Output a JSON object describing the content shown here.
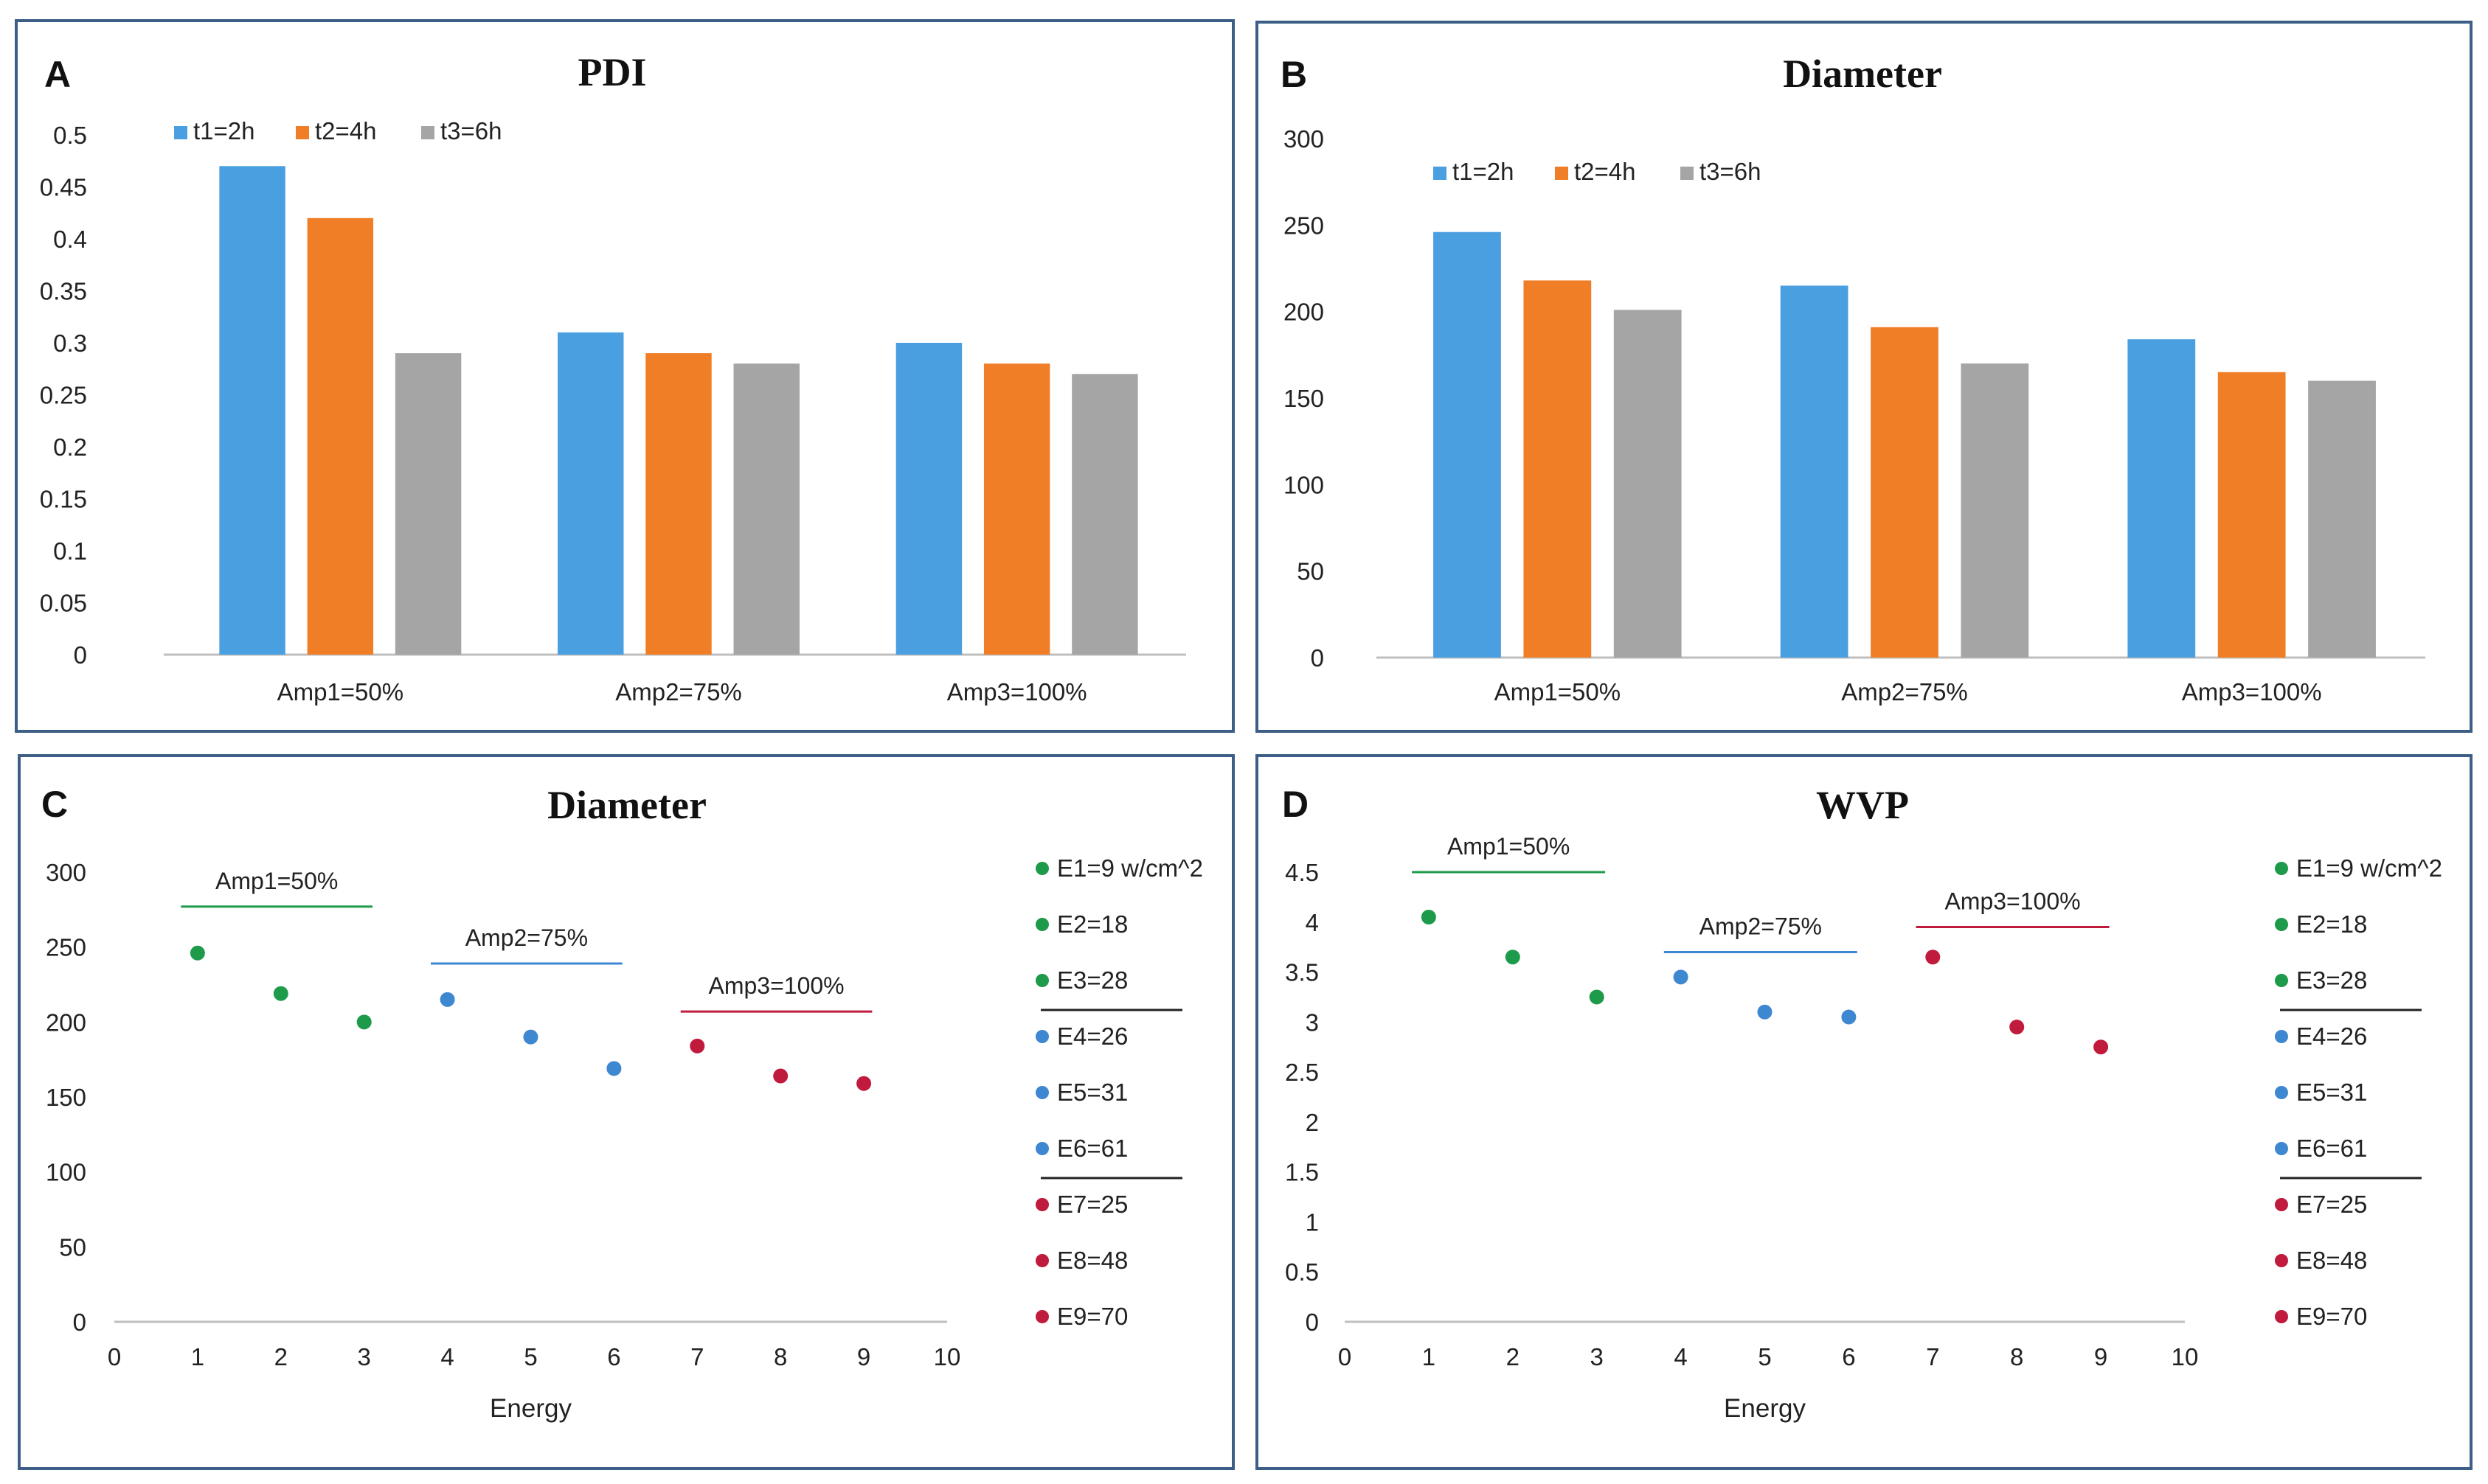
{
  "colors": {
    "t1": "#4a9fe0",
    "t2": "#f07e26",
    "t3": "#a5a5a5",
    "amp1": "#1e9a4b",
    "amp2": "#3e87d1",
    "amp3": "#c01a3c",
    "frame": "#3d5e86",
    "axis": "#bfbfbf"
  },
  "chart_data": [
    {
      "id": "A",
      "letter": "A",
      "type": "bar",
      "title": "PDI",
      "categories": [
        "Amp1=50%",
        "Amp2=75%",
        "Amp3=100%"
      ],
      "series": [
        {
          "name": "t1=2h",
          "color_key": "t1",
          "values": [
            0.47,
            0.31,
            0.3
          ]
        },
        {
          "name": "t2=4h",
          "color_key": "t2",
          "values": [
            0.42,
            0.29,
            0.28
          ]
        },
        {
          "name": "t3=6h",
          "color_key": "t3",
          "values": [
            0.29,
            0.28,
            0.27
          ]
        }
      ],
      "ylim": [
        0,
        0.5
      ],
      "yticks": [
        "0",
        "0.05",
        "0.1",
        "0.15",
        "0.2",
        "0.25",
        "0.3",
        "0.35",
        "0.4",
        "0.45",
        "0.5"
      ],
      "legend_position": "top-left",
      "xlabel": "",
      "ylabel": ""
    },
    {
      "id": "B",
      "letter": "B",
      "type": "bar",
      "title": "Diameter",
      "categories": [
        "Amp1=50%",
        "Amp2=75%",
        "Amp3=100%"
      ],
      "series": [
        {
          "name": "t1=2h",
          "color_key": "t1",
          "values": [
            246,
            215,
            184
          ]
        },
        {
          "name": "t2=4h",
          "color_key": "t2",
          "values": [
            218,
            191,
            165
          ]
        },
        {
          "name": "t3=6h",
          "color_key": "t3",
          "values": [
            201,
            170,
            160
          ]
        }
      ],
      "ylim": [
        0,
        300
      ],
      "yticks": [
        "0",
        "50",
        "100",
        "150",
        "200",
        "250",
        "300"
      ],
      "legend_position": "top-left",
      "xlabel": "",
      "ylabel": ""
    },
    {
      "id": "C",
      "letter": "C",
      "type": "scatter",
      "title": "Diameter",
      "xlabel": "Energy",
      "ylabel": "",
      "xlim": [
        0,
        10
      ],
      "ylim": [
        0,
        300
      ],
      "xticks": [
        "0",
        "1",
        "2",
        "3",
        "4",
        "5",
        "6",
        "7",
        "8",
        "9",
        "10"
      ],
      "yticks": [
        "0",
        "50",
        "100",
        "150",
        "200",
        "250",
        "300"
      ],
      "points": [
        {
          "x": 1,
          "y": 246,
          "group": "amp1"
        },
        {
          "x": 2,
          "y": 219,
          "group": "amp1"
        },
        {
          "x": 3,
          "y": 200,
          "group": "amp1"
        },
        {
          "x": 4,
          "y": 215,
          "group": "amp2"
        },
        {
          "x": 5,
          "y": 190,
          "group": "amp2"
        },
        {
          "x": 6,
          "y": 169,
          "group": "amp2"
        },
        {
          "x": 7,
          "y": 184,
          "group": "amp3"
        },
        {
          "x": 8,
          "y": 164,
          "group": "amp3"
        },
        {
          "x": 9,
          "y": 159,
          "group": "amp3"
        }
      ],
      "group_annotations": [
        {
          "label": "Amp1=50%",
          "group": "amp1",
          "x_from": 1,
          "x_to": 3,
          "y": 277
        },
        {
          "label": "Amp2=75%",
          "group": "amp2",
          "x_from": 4,
          "x_to": 6,
          "y": 239
        },
        {
          "label": "Amp3=100%",
          "group": "amp3",
          "x_from": 7,
          "x_to": 9,
          "y": 207
        }
      ],
      "legend": [
        {
          "label": "E1=9 w/cm^2",
          "group": "amp1"
        },
        {
          "label": "E2=18",
          "group": "amp1"
        },
        {
          "label": "E3=28",
          "group": "amp1"
        },
        {
          "label": "E4=26",
          "group": "amp2"
        },
        {
          "label": "E5=31",
          "group": "amp2"
        },
        {
          "label": "E6=61",
          "group": "amp2"
        },
        {
          "label": "E7=25",
          "group": "amp3"
        },
        {
          "label": "E8=48",
          "group": "amp3"
        },
        {
          "label": "E9=70",
          "group": "amp3"
        }
      ],
      "legend_position": "right"
    },
    {
      "id": "D",
      "letter": "D",
      "type": "scatter",
      "title": "WVP",
      "xlabel": "Energy",
      "ylabel": "",
      "xlim": [
        0,
        10
      ],
      "ylim": [
        0,
        4.5
      ],
      "xticks": [
        "0",
        "1",
        "2",
        "3",
        "4",
        "5",
        "6",
        "7",
        "8",
        "9",
        "10"
      ],
      "yticks": [
        "0",
        "0.5",
        "1",
        "1.5",
        "2",
        "2.5",
        "3",
        "3.5",
        "4",
        "4.5"
      ],
      "points": [
        {
          "x": 1,
          "y": 4.05,
          "group": "amp1"
        },
        {
          "x": 2,
          "y": 3.65,
          "group": "amp1"
        },
        {
          "x": 3,
          "y": 3.25,
          "group": "amp1"
        },
        {
          "x": 4,
          "y": 3.45,
          "group": "amp2"
        },
        {
          "x": 5,
          "y": 3.1,
          "group": "amp2"
        },
        {
          "x": 6,
          "y": 3.05,
          "group": "amp2"
        },
        {
          "x": 7,
          "y": 3.65,
          "group": "amp3"
        },
        {
          "x": 8,
          "y": 2.95,
          "group": "amp3"
        },
        {
          "x": 9,
          "y": 2.75,
          "group": "amp3"
        }
      ],
      "group_annotations": [
        {
          "label": "Amp1=50%",
          "group": "amp1",
          "x_from": 1,
          "x_to": 3,
          "y": 4.5
        },
        {
          "label": "Amp2=75%",
          "group": "amp2",
          "x_from": 4,
          "x_to": 6,
          "y": 3.7
        },
        {
          "label": "Amp3=100%",
          "group": "amp3",
          "x_from": 7,
          "x_to": 9,
          "y": 3.95
        }
      ],
      "legend": [
        {
          "label": "E1=9 w/cm^2",
          "group": "amp1"
        },
        {
          "label": "E2=18",
          "group": "amp1"
        },
        {
          "label": "E3=28",
          "group": "amp1"
        },
        {
          "label": "E4=26",
          "group": "amp2"
        },
        {
          "label": "E5=31",
          "group": "amp2"
        },
        {
          "label": "E6=61",
          "group": "amp2"
        },
        {
          "label": "E7=25",
          "group": "amp3"
        },
        {
          "label": "E8=48",
          "group": "amp3"
        },
        {
          "label": "E9=70",
          "group": "amp3"
        }
      ],
      "legend_position": "right"
    }
  ]
}
